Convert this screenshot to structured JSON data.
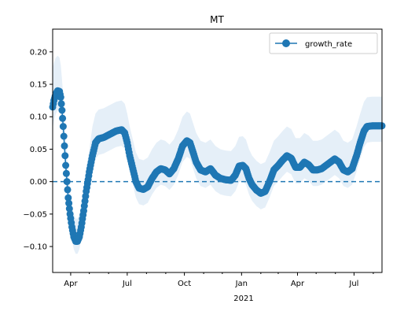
{
  "chart_data": {
    "type": "line",
    "title": "MT",
    "x_axis": {
      "tick_labels": [
        "Apr",
        "Jul",
        "Oct",
        "Jan",
        "Apr",
        "Jul"
      ],
      "year_label": "2021",
      "range": [
        "2020-03-03",
        "2021-08-15"
      ]
    },
    "y_axis": {
      "range": [
        -0.14,
        0.235
      ],
      "ticks": [
        -0.1,
        -0.05,
        0.0,
        0.05,
        0.1,
        0.15,
        0.2
      ],
      "tick_labels": [
        "−0.10",
        "−0.05",
        "0.00",
        "0.05",
        "0.10",
        "0.15",
        "0.20"
      ]
    },
    "reference_line": {
      "y": 0.0,
      "style": "dashed"
    },
    "legend": {
      "placement": "top-right",
      "entries": [
        "growth_rate"
      ]
    },
    "colors": {
      "series": "#1f77b4",
      "band": "#dce9f5"
    },
    "series": [
      {
        "name": "growth_rate",
        "marker": "circle",
        "points": [
          [
            "2020-03-03",
            0.115
          ],
          [
            "2020-03-05",
            0.125
          ],
          [
            "2020-03-08",
            0.135
          ],
          [
            "2020-03-11",
            0.14
          ],
          [
            "2020-03-14",
            0.139
          ],
          [
            "2020-03-16",
            0.13
          ],
          [
            "2020-03-18",
            0.11
          ],
          [
            "2020-03-20",
            0.085
          ],
          [
            "2020-03-22",
            0.055
          ],
          [
            "2020-03-24",
            0.025
          ],
          [
            "2020-03-26",
            0.0
          ],
          [
            "2020-03-28",
            -0.025
          ],
          [
            "2020-03-31",
            -0.05
          ],
          [
            "2020-04-03",
            -0.07
          ],
          [
            "2020-04-06",
            -0.085
          ],
          [
            "2020-04-09",
            -0.092
          ],
          [
            "2020-04-12",
            -0.092
          ],
          [
            "2020-04-15",
            -0.085
          ],
          [
            "2020-04-18",
            -0.07
          ],
          [
            "2020-04-22",
            -0.045
          ],
          [
            "2020-04-26",
            -0.015
          ],
          [
            "2020-05-01",
            0.015
          ],
          [
            "2020-05-06",
            0.04
          ],
          [
            "2020-05-11",
            0.06
          ],
          [
            "2020-05-16",
            0.066
          ],
          [
            "2020-05-24",
            0.068
          ],
          [
            "2020-06-03",
            0.073
          ],
          [
            "2020-06-13",
            0.078
          ],
          [
            "2020-06-22",
            0.08
          ],
          [
            "2020-06-27",
            0.075
          ],
          [
            "2020-07-01",
            0.06
          ],
          [
            "2020-07-05",
            0.04
          ],
          [
            "2020-07-10",
            0.02
          ],
          [
            "2020-07-15",
            0.0
          ],
          [
            "2020-07-20",
            -0.01
          ],
          [
            "2020-07-27",
            -0.012
          ],
          [
            "2020-08-03",
            -0.008
          ],
          [
            "2020-08-10",
            0.005
          ],
          [
            "2020-08-17",
            0.015
          ],
          [
            "2020-08-24",
            0.02
          ],
          [
            "2020-08-31",
            0.018
          ],
          [
            "2020-09-07",
            0.012
          ],
          [
            "2020-09-14",
            0.02
          ],
          [
            "2020-09-21",
            0.035
          ],
          [
            "2020-09-28",
            0.055
          ],
          [
            "2020-10-05",
            0.063
          ],
          [
            "2020-10-10",
            0.06
          ],
          [
            "2020-10-15",
            0.045
          ],
          [
            "2020-10-20",
            0.03
          ],
          [
            "2020-10-27",
            0.018
          ],
          [
            "2020-11-04",
            0.015
          ],
          [
            "2020-11-12",
            0.02
          ],
          [
            "2020-11-20",
            0.01
          ],
          [
            "2020-11-28",
            0.005
          ],
          [
            "2020-12-06",
            0.003
          ],
          [
            "2020-12-15",
            0.002
          ],
          [
            "2020-12-22",
            0.01
          ],
          [
            "2020-12-28",
            0.024
          ],
          [
            "2021-01-03",
            0.025
          ],
          [
            "2021-01-08",
            0.02
          ],
          [
            "2021-01-13",
            0.005
          ],
          [
            "2021-01-18",
            -0.005
          ],
          [
            "2021-01-25",
            -0.013
          ],
          [
            "2021-02-01",
            -0.018
          ],
          [
            "2021-02-08",
            -0.015
          ],
          [
            "2021-02-15",
            0.0
          ],
          [
            "2021-02-22",
            0.018
          ],
          [
            "2021-03-01",
            0.025
          ],
          [
            "2021-03-08",
            0.033
          ],
          [
            "2021-03-15",
            0.04
          ],
          [
            "2021-03-22",
            0.036
          ],
          [
            "2021-03-29",
            0.022
          ],
          [
            "2021-04-05",
            0.022
          ],
          [
            "2021-04-12",
            0.03
          ],
          [
            "2021-04-19",
            0.026
          ],
          [
            "2021-04-26",
            0.018
          ],
          [
            "2021-05-03",
            0.018
          ],
          [
            "2021-05-10",
            0.02
          ],
          [
            "2021-05-17",
            0.025
          ],
          [
            "2021-05-24",
            0.03
          ],
          [
            "2021-05-31",
            0.035
          ],
          [
            "2021-06-07",
            0.03
          ],
          [
            "2021-06-14",
            0.018
          ],
          [
            "2021-06-21",
            0.015
          ],
          [
            "2021-06-28",
            0.02
          ],
          [
            "2021-07-05",
            0.04
          ],
          [
            "2021-07-11",
            0.06
          ],
          [
            "2021-07-17",
            0.078
          ],
          [
            "2021-07-22",
            0.085
          ],
          [
            "2021-07-30",
            0.086
          ],
          [
            "2021-08-07",
            0.086
          ],
          [
            "2021-08-15",
            0.086
          ]
        ]
      }
    ]
  }
}
